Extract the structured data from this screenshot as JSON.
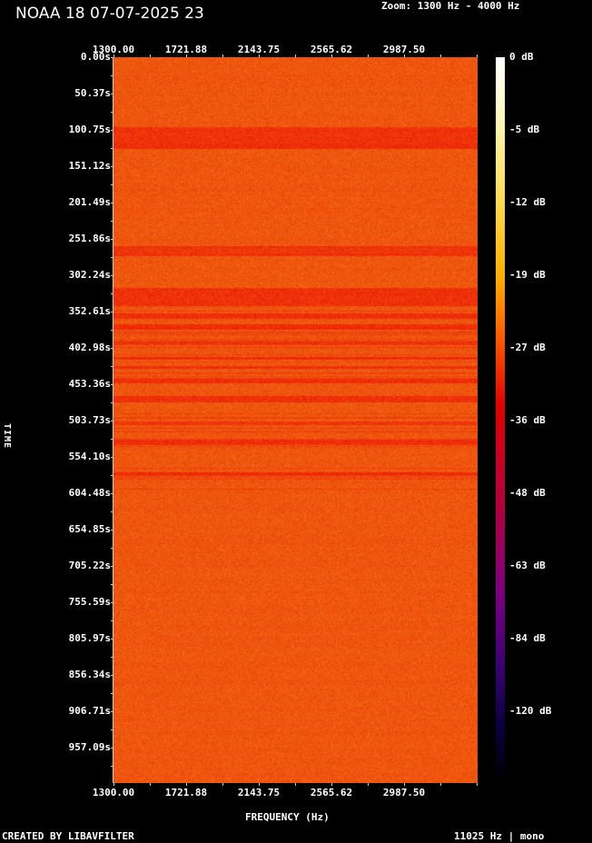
{
  "title": "NOAA 18 07-07-2025 23",
  "zoom_label": "Zoom: 1300 Hz - 4000 Hz",
  "footer_left": "CREATED BY LIBAVFILTER",
  "footer_right": "11025 Hz | mono",
  "chart_data": {
    "type": "heatmap",
    "title": "NOAA 18 07-07-2025 23",
    "xlabel": "FREQUENCY (Hz)",
    "ylabel": "TIME",
    "x_tick_labels": [
      "1300.00",
      "1721.88",
      "2143.75",
      "2565.62",
      "2987.50"
    ],
    "y_tick_labels": [
      "0.00s",
      "50.37s",
      "100.75s",
      "151.12s",
      "201.49s",
      "251.86s",
      "302.24s",
      "352.61s",
      "402.98s",
      "453.36s",
      "503.73s",
      "554.10s",
      "604.48s",
      "654.85s",
      "705.22s",
      "755.59s",
      "805.97s",
      "856.34s",
      "906.71s",
      "957.09s"
    ],
    "colorbar_labels": [
      "0 dB",
      "-5 dB",
      "-12 dB",
      "-19 dB",
      "-27 dB",
      "-36 dB",
      "-48 dB",
      "-63 dB",
      "-84 dB",
      "-120 dB"
    ],
    "xlim": [
      1300,
      4000
    ],
    "ylim_s": [
      0,
      1007
    ],
    "colormap": "intensity (black-blue-purple-red-orange-yellow-white)",
    "base_color": "#f04510",
    "band_color": "#e81800",
    "dark_bands_s": [
      [
        97,
        127
      ],
      [
        262,
        275
      ],
      [
        320,
        345
      ],
      [
        355,
        362
      ],
      [
        370,
        378
      ],
      [
        392,
        398
      ],
      [
        415,
        419
      ],
      [
        428,
        432
      ],
      [
        445,
        452
      ],
      [
        470,
        478
      ],
      [
        505,
        510
      ],
      [
        530,
        538
      ],
      [
        575,
        580
      ]
    ]
  }
}
